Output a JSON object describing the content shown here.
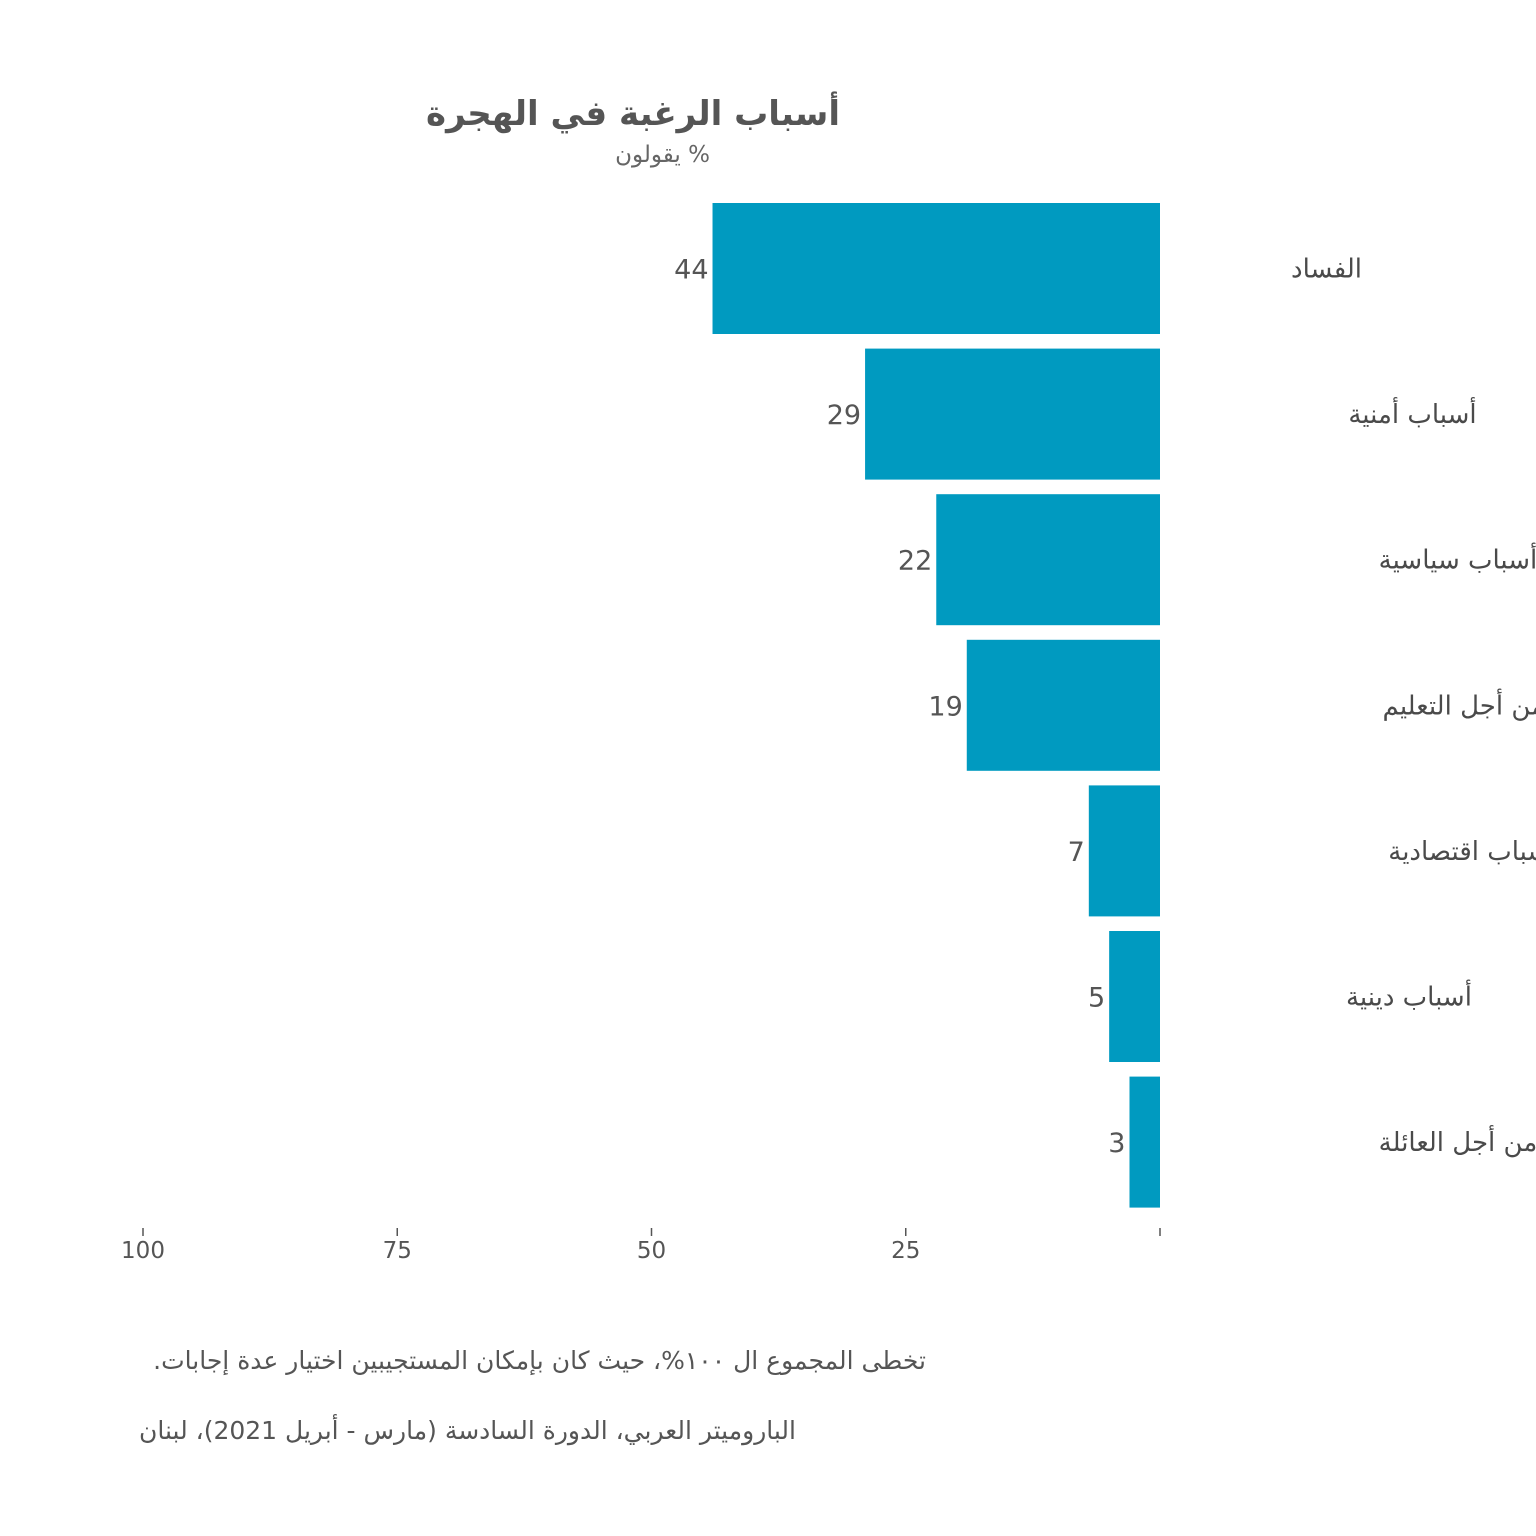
{
  "chart_data": {
    "type": "bar",
    "orientation": "horizontal",
    "x_direction": "reversed",
    "title": "أسباب الرغبة في الهجرة",
    "subtitle": "% يقولون",
    "categories": [
      "الفساد",
      "أسباب أمنية",
      "أسباب سياسية",
      "من أجل التعليم",
      "أسباب اقتصادية",
      "أسباب دينية",
      "من أجل العائلة"
    ],
    "values": [
      44,
      29,
      22,
      19,
      7,
      5,
      3
    ],
    "data_labels": [
      "44",
      "29",
      "22",
      "19",
      "7",
      "5",
      "3"
    ],
    "xlim": [
      0,
      100
    ],
    "x_ticks": [
      100,
      75,
      50,
      25,
      0
    ],
    "x_tick_labels": [
      "100",
      "75",
      "50",
      "25",
      ""
    ],
    "grid": false,
    "bar_color": "#009ac0"
  },
  "notes": {
    "line1": "تخطى المجموع ال ١٠٠%، حيث كان بإمكان المستجيبين اختيار عدة إجابات.",
    "line2": "الباروميتر العربي، الدورة السادسة (مارس - أبريل 2021)، لبنان"
  },
  "colors": {
    "bar": "#009ac0",
    "text": "#4a4a4a",
    "tick": "#555555"
  }
}
